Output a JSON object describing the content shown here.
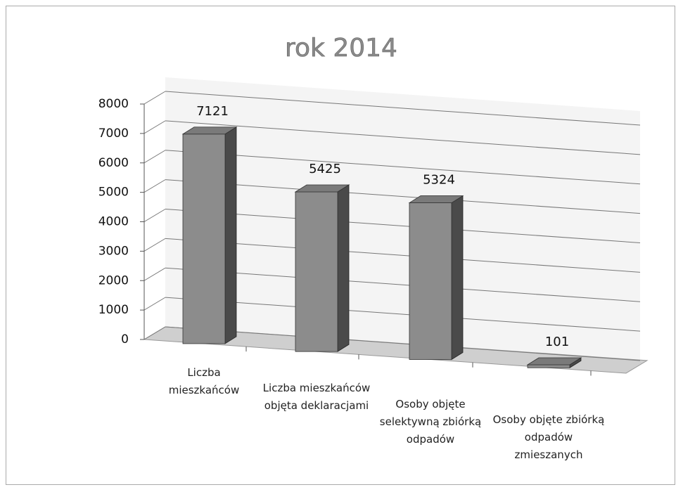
{
  "chart_data": {
    "type": "bar",
    "title": "rok 2014",
    "categories": [
      "Liczba mieszkańców",
      "Liczba mieszkańców objęta deklaracjami",
      "Osoby objęte selektywną zbiórką odpadów",
      "Osoby objęte zbiórką odpadów zmieszanych"
    ],
    "values": [
      7121,
      5425,
      5324,
      101
    ],
    "color": "#8c8c8c",
    "ylim": [
      0,
      8000
    ],
    "yticks": [
      0,
      1000,
      2000,
      3000,
      4000,
      5000,
      6000,
      7000,
      8000
    ],
    "grid": true
  }
}
